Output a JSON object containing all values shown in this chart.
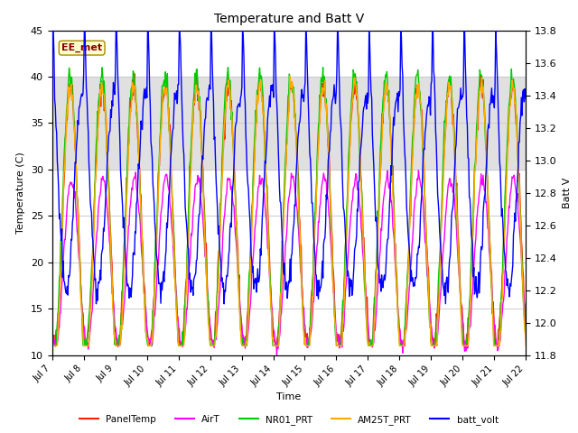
{
  "title": "Temperature and Batt V",
  "xlabel": "Time",
  "ylabel_left": "Temperature (C)",
  "ylabel_right": "Batt V",
  "ylim_left": [
    10,
    45
  ],
  "ylim_right": [
    11.8,
    13.8
  ],
  "shade_band": [
    30,
    40
  ],
  "xtick_labels": [
    "Jul 7",
    "Jul 8",
    "Jul 9",
    "Jul 10",
    "Jul 11",
    "Jul 12",
    "Jul 13",
    "Jul 14",
    "Jul 15",
    "Jul 16",
    "Jul 17",
    "Jul 18",
    "Jul 19",
    "Jul 20",
    "Jul 21",
    "Jul 22"
  ],
  "station_label": "EE_met",
  "colors": {
    "PanelTemp": "#ff2200",
    "AirT": "#ff00ff",
    "NR01_PRT": "#00cc00",
    "AM25T_PRT": "#ffaa00",
    "batt_volt": "#0000ff"
  },
  "legend_labels": [
    "PanelTemp",
    "AirT",
    "NR01_PRT",
    "AM25T_PRT",
    "batt_volt"
  ],
  "background_color": "#ffffff",
  "grid_color": "#cccccc",
  "shade_color": "#e0e0e0"
}
